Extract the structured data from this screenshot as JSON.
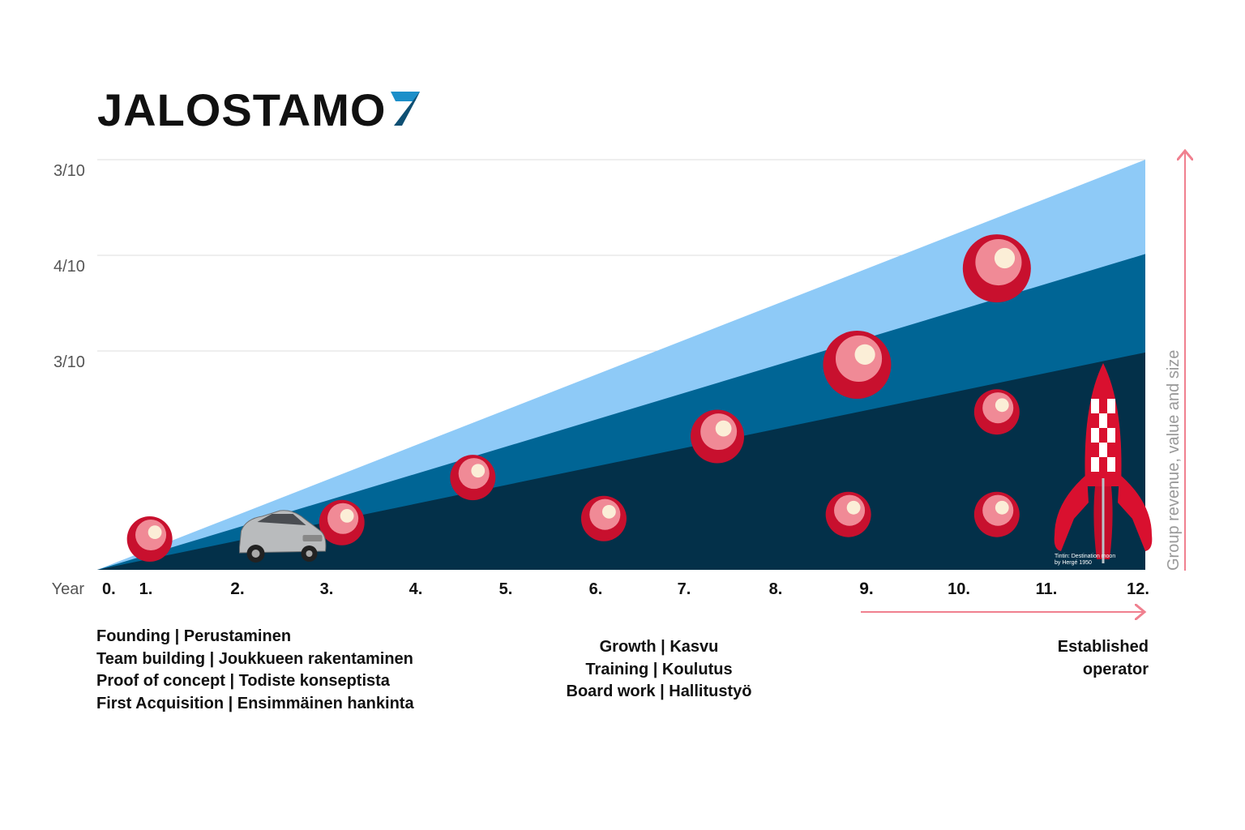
{
  "logo": {
    "text": "JALOSTAMO",
    "mark": "7",
    "mark_colors": [
      "#1c8fc9",
      "#0e4f73"
    ]
  },
  "chart_data": {
    "type": "area",
    "x_label": "Year",
    "x_ticks": [
      "0.",
      "1.",
      "2.",
      "3.",
      "4.",
      "5.",
      "6.",
      "7.",
      "8.",
      "9.",
      "10.",
      "11.",
      "12."
    ],
    "x_ticks_bold": [
      "2.",
      "9."
    ],
    "x_range": [
      0,
      12
    ],
    "y_tick_labels": [
      "3/10",
      "4/10",
      "3/10"
    ],
    "y_axis_label": "Group revenue, value and size",
    "grid": true,
    "series": [
      {
        "values": [
          0,
          12
        ],
        "color": "#8ecaf7",
        "end_fraction": 1.0
      },
      {
        "values": [
          0,
          12
        ],
        "color": "#006595",
        "end_fraction": 0.77
      },
      {
        "values": [
          0,
          12
        ],
        "color": "#033049",
        "end_fraction": 0.53
      }
    ],
    "bubbles": [
      {
        "x": 0.6,
        "level": 0.075,
        "size": "small"
      },
      {
        "x": 2.8,
        "level": 0.115,
        "size": "small"
      },
      {
        "x": 4.3,
        "level": 0.225,
        "size": "small"
      },
      {
        "x": 5.8,
        "level": 0.125,
        "size": "small"
      },
      {
        "x": 7.1,
        "level": 0.325,
        "size": "medium"
      },
      {
        "x": 8.6,
        "level": 0.135,
        "size": "small"
      },
      {
        "x": 8.7,
        "level": 0.5,
        "size": "large"
      },
      {
        "x": 10.3,
        "level": 0.135,
        "size": "small"
      },
      {
        "x": 10.3,
        "level": 0.385,
        "size": "small"
      },
      {
        "x": 10.3,
        "level": 0.735,
        "size": "large"
      }
    ],
    "bubble_colors": {
      "outer": "#c8102e",
      "inner": "#f08a96",
      "highlight": "#fbeed7"
    },
    "arrow_color": "#f0808f",
    "illustrations": [
      {
        "name": "car",
        "x": 2.0
      },
      {
        "name": "rocket",
        "x": 11.6,
        "caption": [
          "Tintin: Destination moon",
          "by Hergé 1950"
        ]
      }
    ]
  },
  "phases": [
    {
      "lines": [
        "Founding | Perustaminen",
        "Team building | Joukkueen rakentaminen",
        "Proof of concept | Todiste konseptista",
        "First Acquisition | Ensimmäinen hankinta"
      ]
    },
    {
      "lines": [
        "Growth | Kasvu",
        "Training | Koulutus",
        "Board work | Hallitustyö"
      ]
    },
    {
      "lines": [
        "Established",
        "operator"
      ]
    }
  ]
}
